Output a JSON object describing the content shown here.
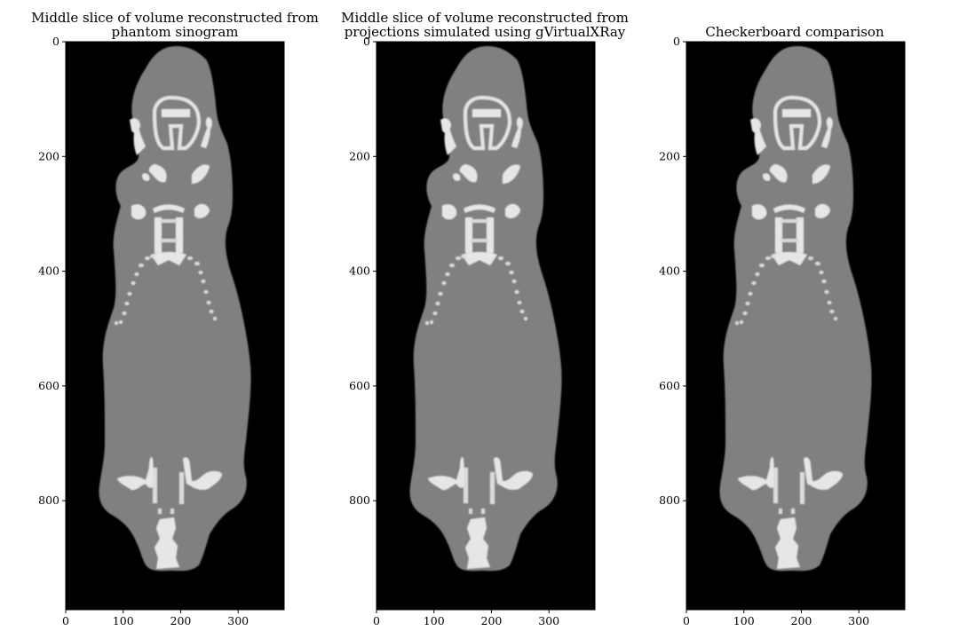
{
  "figure": {
    "panels": [
      {
        "id": "phantom",
        "title_line1": "Middle slice of volume reconstructed from",
        "title_line2": "phantom sinogram",
        "image_label": "CT slice reconstructed from phantom sinogram"
      },
      {
        "id": "gvxr",
        "title_line1": "Middle slice of volume reconstructed from",
        "title_line2": "projections simulated using gVirtualXRay",
        "image_label": "CT slice reconstructed from gVirtualXRay projections"
      },
      {
        "id": "checkerboard",
        "title_line1": "Checkerboard comparison",
        "title_line2": "",
        "image_label": "Checkerboard comparison of the two slices"
      }
    ],
    "x_axis": {
      "ticks": [
        "0",
        "100",
        "200",
        "300"
      ],
      "range": [
        0,
        380
      ]
    },
    "y_axis": {
      "ticks": [
        "0",
        "200",
        "400",
        "600",
        "800"
      ],
      "range": [
        0,
        990
      ]
    },
    "colors": {
      "background": "#000000",
      "tissue": "#808080",
      "bone": "#e6e6e6",
      "frame": "#000000"
    }
  }
}
